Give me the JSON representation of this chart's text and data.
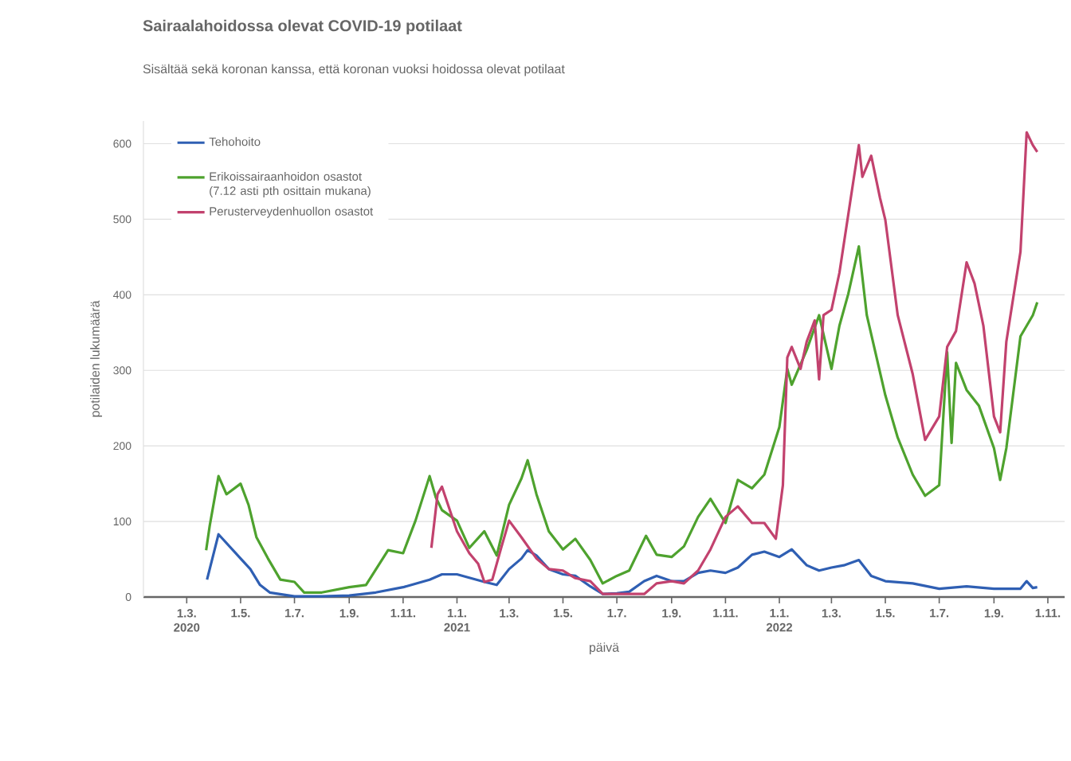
{
  "chart_data": {
    "type": "line",
    "title": "Sairaalahoidossa olevat COVID-19 potilaat",
    "subtitle": "Sisältää sekä koronan kanssa, että koronan vuoksi hoidossa olevat potilaat",
    "xlabel": "päivä",
    "ylabel": "potilaiden lukumäärä",
    "xlim": [
      "2020-01-12",
      "2022-11-20"
    ],
    "ylim": [
      0,
      630
    ],
    "yticks": [
      0,
      100,
      200,
      300,
      400,
      500,
      600
    ],
    "xticks": [
      {
        "value": "2020-03-01",
        "label": "1.3. 2020"
      },
      {
        "value": "2020-05-01",
        "label": "1.5."
      },
      {
        "value": "2020-07-01",
        "label": "1.7."
      },
      {
        "value": "2020-09-01",
        "label": "1.9."
      },
      {
        "value": "2020-11-01",
        "label": "1.11."
      },
      {
        "value": "2021-01-01",
        "label": "1.1. 2021"
      },
      {
        "value": "2021-03-01",
        "label": "1.3."
      },
      {
        "value": "2021-05-01",
        "label": "1.5."
      },
      {
        "value": "2021-07-01",
        "label": "1.7."
      },
      {
        "value": "2021-09-01",
        "label": "1.9."
      },
      {
        "value": "2021-11-01",
        "label": "1.11."
      },
      {
        "value": "2022-01-01",
        "label": "1.1. 2022"
      },
      {
        "value": "2022-03-01",
        "label": "1.3."
      },
      {
        "value": "2022-05-01",
        "label": "1.5."
      },
      {
        "value": "2022-07-01",
        "label": "1.7."
      },
      {
        "value": "2022-09-01",
        "label": "1.9."
      },
      {
        "value": "2022-11-01",
        "label": "1.11."
      }
    ],
    "grid": "y",
    "legend": "top left",
    "series": [
      {
        "name": "Tehohoito",
        "color": "#2f5fb3",
        "x": [
          "2020-03-24",
          "2020-04-06",
          "2020-05-01",
          "2020-05-12",
          "2020-05-23",
          "2020-06-03",
          "2020-07-01",
          "2020-08-01",
          "2020-09-01",
          "2020-10-01",
          "2020-11-01",
          "2020-12-01",
          "2020-12-15",
          "2021-01-01",
          "2021-02-01",
          "2021-02-15",
          "2021-03-01",
          "2021-03-15",
          "2021-03-22",
          "2021-04-01",
          "2021-04-15",
          "2021-05-01",
          "2021-05-15",
          "2021-06-01",
          "2021-06-15",
          "2021-07-01",
          "2021-07-15",
          "2021-08-01",
          "2021-08-15",
          "2021-09-01",
          "2021-09-15",
          "2021-10-01",
          "2021-10-15",
          "2021-11-01",
          "2021-11-15",
          "2021-12-01",
          "2021-12-15",
          "2022-01-01",
          "2022-01-15",
          "2022-02-01",
          "2022-02-15",
          "2022-03-01",
          "2022-03-15",
          "2022-04-01",
          "2022-04-15",
          "2022-05-01",
          "2022-06-01",
          "2022-07-01",
          "2022-08-01",
          "2022-09-01",
          "2022-10-01",
          "2022-10-08",
          "2022-10-15",
          "2022-10-20"
        ],
        "values": [
          23,
          83,
          51,
          37,
          16,
          6,
          1,
          1,
          2,
          6,
          13,
          23,
          30,
          30,
          20,
          16,
          37,
          51,
          62,
          55,
          37,
          30,
          28,
          14,
          4,
          5,
          7,
          21,
          28,
          21,
          21,
          32,
          35,
          32,
          39,
          56,
          60,
          53,
          63,
          42,
          35,
          39,
          42,
          49,
          28,
          21,
          18,
          11,
          14,
          11,
          11,
          21,
          12,
          13
        ]
      },
      {
        "name": "Erikoissairaanhoidon osastot (7.12 asti pth osittain mukana)",
        "color": "#4ea22e",
        "x": [
          "2020-03-23",
          "2020-03-27",
          "2020-04-06",
          "2020-04-15",
          "2020-05-01",
          "2020-05-10",
          "2020-05-19",
          "2020-06-01",
          "2020-06-15",
          "2020-07-01",
          "2020-07-12",
          "2020-08-01",
          "2020-09-01",
          "2020-09-20",
          "2020-10-15",
          "2020-11-01",
          "2020-11-15",
          "2020-12-01",
          "2020-12-08",
          "2020-12-15",
          "2021-01-01",
          "2021-01-15",
          "2021-02-01",
          "2021-02-15",
          "2021-03-01",
          "2021-03-15",
          "2021-03-22",
          "2021-04-01",
          "2021-04-15",
          "2021-05-01",
          "2021-05-15",
          "2021-06-01",
          "2021-06-15",
          "2021-07-01",
          "2021-07-15",
          "2021-08-03",
          "2021-08-15",
          "2021-09-01",
          "2021-09-15",
          "2021-10-01",
          "2021-10-15",
          "2021-11-01",
          "2021-11-15",
          "2021-12-01",
          "2021-12-15",
          "2022-01-01",
          "2022-01-10",
          "2022-01-15",
          "2022-02-01",
          "2022-02-15",
          "2022-03-01",
          "2022-03-10",
          "2022-03-20",
          "2022-04-01",
          "2022-04-10",
          "2022-05-01",
          "2022-05-15",
          "2022-06-01",
          "2022-06-15",
          "2022-07-01",
          "2022-07-10",
          "2022-07-15",
          "2022-07-20",
          "2022-08-01",
          "2022-08-15",
          "2022-09-01",
          "2022-09-08",
          "2022-09-15",
          "2022-10-01",
          "2022-10-15",
          "2022-10-20"
        ],
        "values": [
          62,
          94,
          160,
          136,
          150,
          122,
          79,
          51,
          23,
          20,
          6,
          6,
          13,
          16,
          62,
          58,
          101,
          160,
          132,
          115,
          101,
          65,
          87,
          55,
          122,
          157,
          181,
          136,
          87,
          63,
          77,
          49,
          18,
          28,
          35,
          81,
          56,
          53,
          67,
          106,
          130,
          98,
          155,
          144,
          162,
          225,
          302,
          281,
          327,
          373,
          302,
          359,
          401,
          464,
          373,
          267,
          211,
          162,
          134,
          148,
          324,
          204,
          310,
          274,
          253,
          197,
          155,
          197,
          345,
          373,
          390
        ]
      },
      {
        "name": "Perusterveydenhuollon osastot",
        "color": "#c2426e",
        "x": [
          "2020-12-03",
          "2020-12-10",
          "2020-12-15",
          "2021-01-01",
          "2021-01-15",
          "2021-01-25",
          "2021-02-01",
          "2021-02-10",
          "2021-02-20",
          "2021-03-01",
          "2021-03-15",
          "2021-04-01",
          "2021-04-15",
          "2021-05-01",
          "2021-05-15",
          "2021-06-01",
          "2021-06-15",
          "2021-07-01",
          "2021-08-01",
          "2021-08-15",
          "2021-09-01",
          "2021-09-15",
          "2021-10-01",
          "2021-10-15",
          "2021-11-01",
          "2021-11-15",
          "2021-12-01",
          "2021-12-15",
          "2021-12-28",
          "2022-01-05",
          "2022-01-10",
          "2022-01-15",
          "2022-01-25",
          "2022-02-01",
          "2022-02-10",
          "2022-02-15",
          "2022-02-20",
          "2022-03-01",
          "2022-03-10",
          "2022-03-20",
          "2022-04-01",
          "2022-04-05",
          "2022-04-15",
          "2022-04-25",
          "2022-05-01",
          "2022-05-15",
          "2022-06-01",
          "2022-06-15",
          "2022-07-01",
          "2022-07-10",
          "2022-07-20",
          "2022-08-01",
          "2022-08-10",
          "2022-08-20",
          "2022-09-01",
          "2022-09-08",
          "2022-09-15",
          "2022-10-01",
          "2022-10-08",
          "2022-10-15",
          "2022-10-20"
        ],
        "values": [
          65,
          136,
          146,
          87,
          58,
          44,
          20,
          23,
          65,
          101,
          79,
          51,
          37,
          35,
          25,
          21,
          4,
          4,
          4,
          18,
          21,
          18,
          35,
          63,
          106,
          120,
          98,
          98,
          77,
          148,
          317,
          331,
          302,
          338,
          366,
          288,
          373,
          380,
          429,
          506,
          598,
          556,
          584,
          528,
          499,
          373,
          295,
          208,
          239,
          331,
          352,
          443,
          415,
          359,
          239,
          218,
          338,
          457,
          615,
          598,
          589
        ]
      }
    ]
  }
}
